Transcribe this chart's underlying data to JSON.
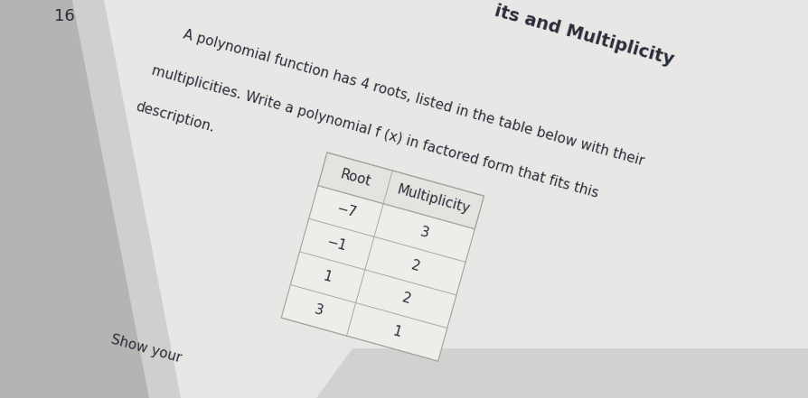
{
  "page_number": "16",
  "title": "its and Multiplicity",
  "problem_text_line1": "A polynomial function has 4 roots, listed in the table below with their",
  "problem_text_line2": "multiplicities. Write a polynomial f (x) in factored form that fits this",
  "problem_text_line3": "description.",
  "table_headers": [
    "Root",
    "Multiplicity"
  ],
  "table_roots": [
    "−7",
    "−1",
    "1",
    "3"
  ],
  "table_multiplicities": [
    "3",
    "2",
    "2",
    "1"
  ],
  "show_work_label": "Show your",
  "bg_color_outer": "#c0bfbd",
  "bg_color_page": "#e8e7e5",
  "bg_color_page2": "#d8d7d5",
  "title_bg": "#c8c7c5",
  "table_bg": "#f0efed",
  "table_line_color": "#b0afad",
  "text_color": "#2a2d3a",
  "font_size_title": 14,
  "font_size_body": 11,
  "font_size_table": 11,
  "rotation_deg": -15.5,
  "page_tilt_deg": -15.5
}
